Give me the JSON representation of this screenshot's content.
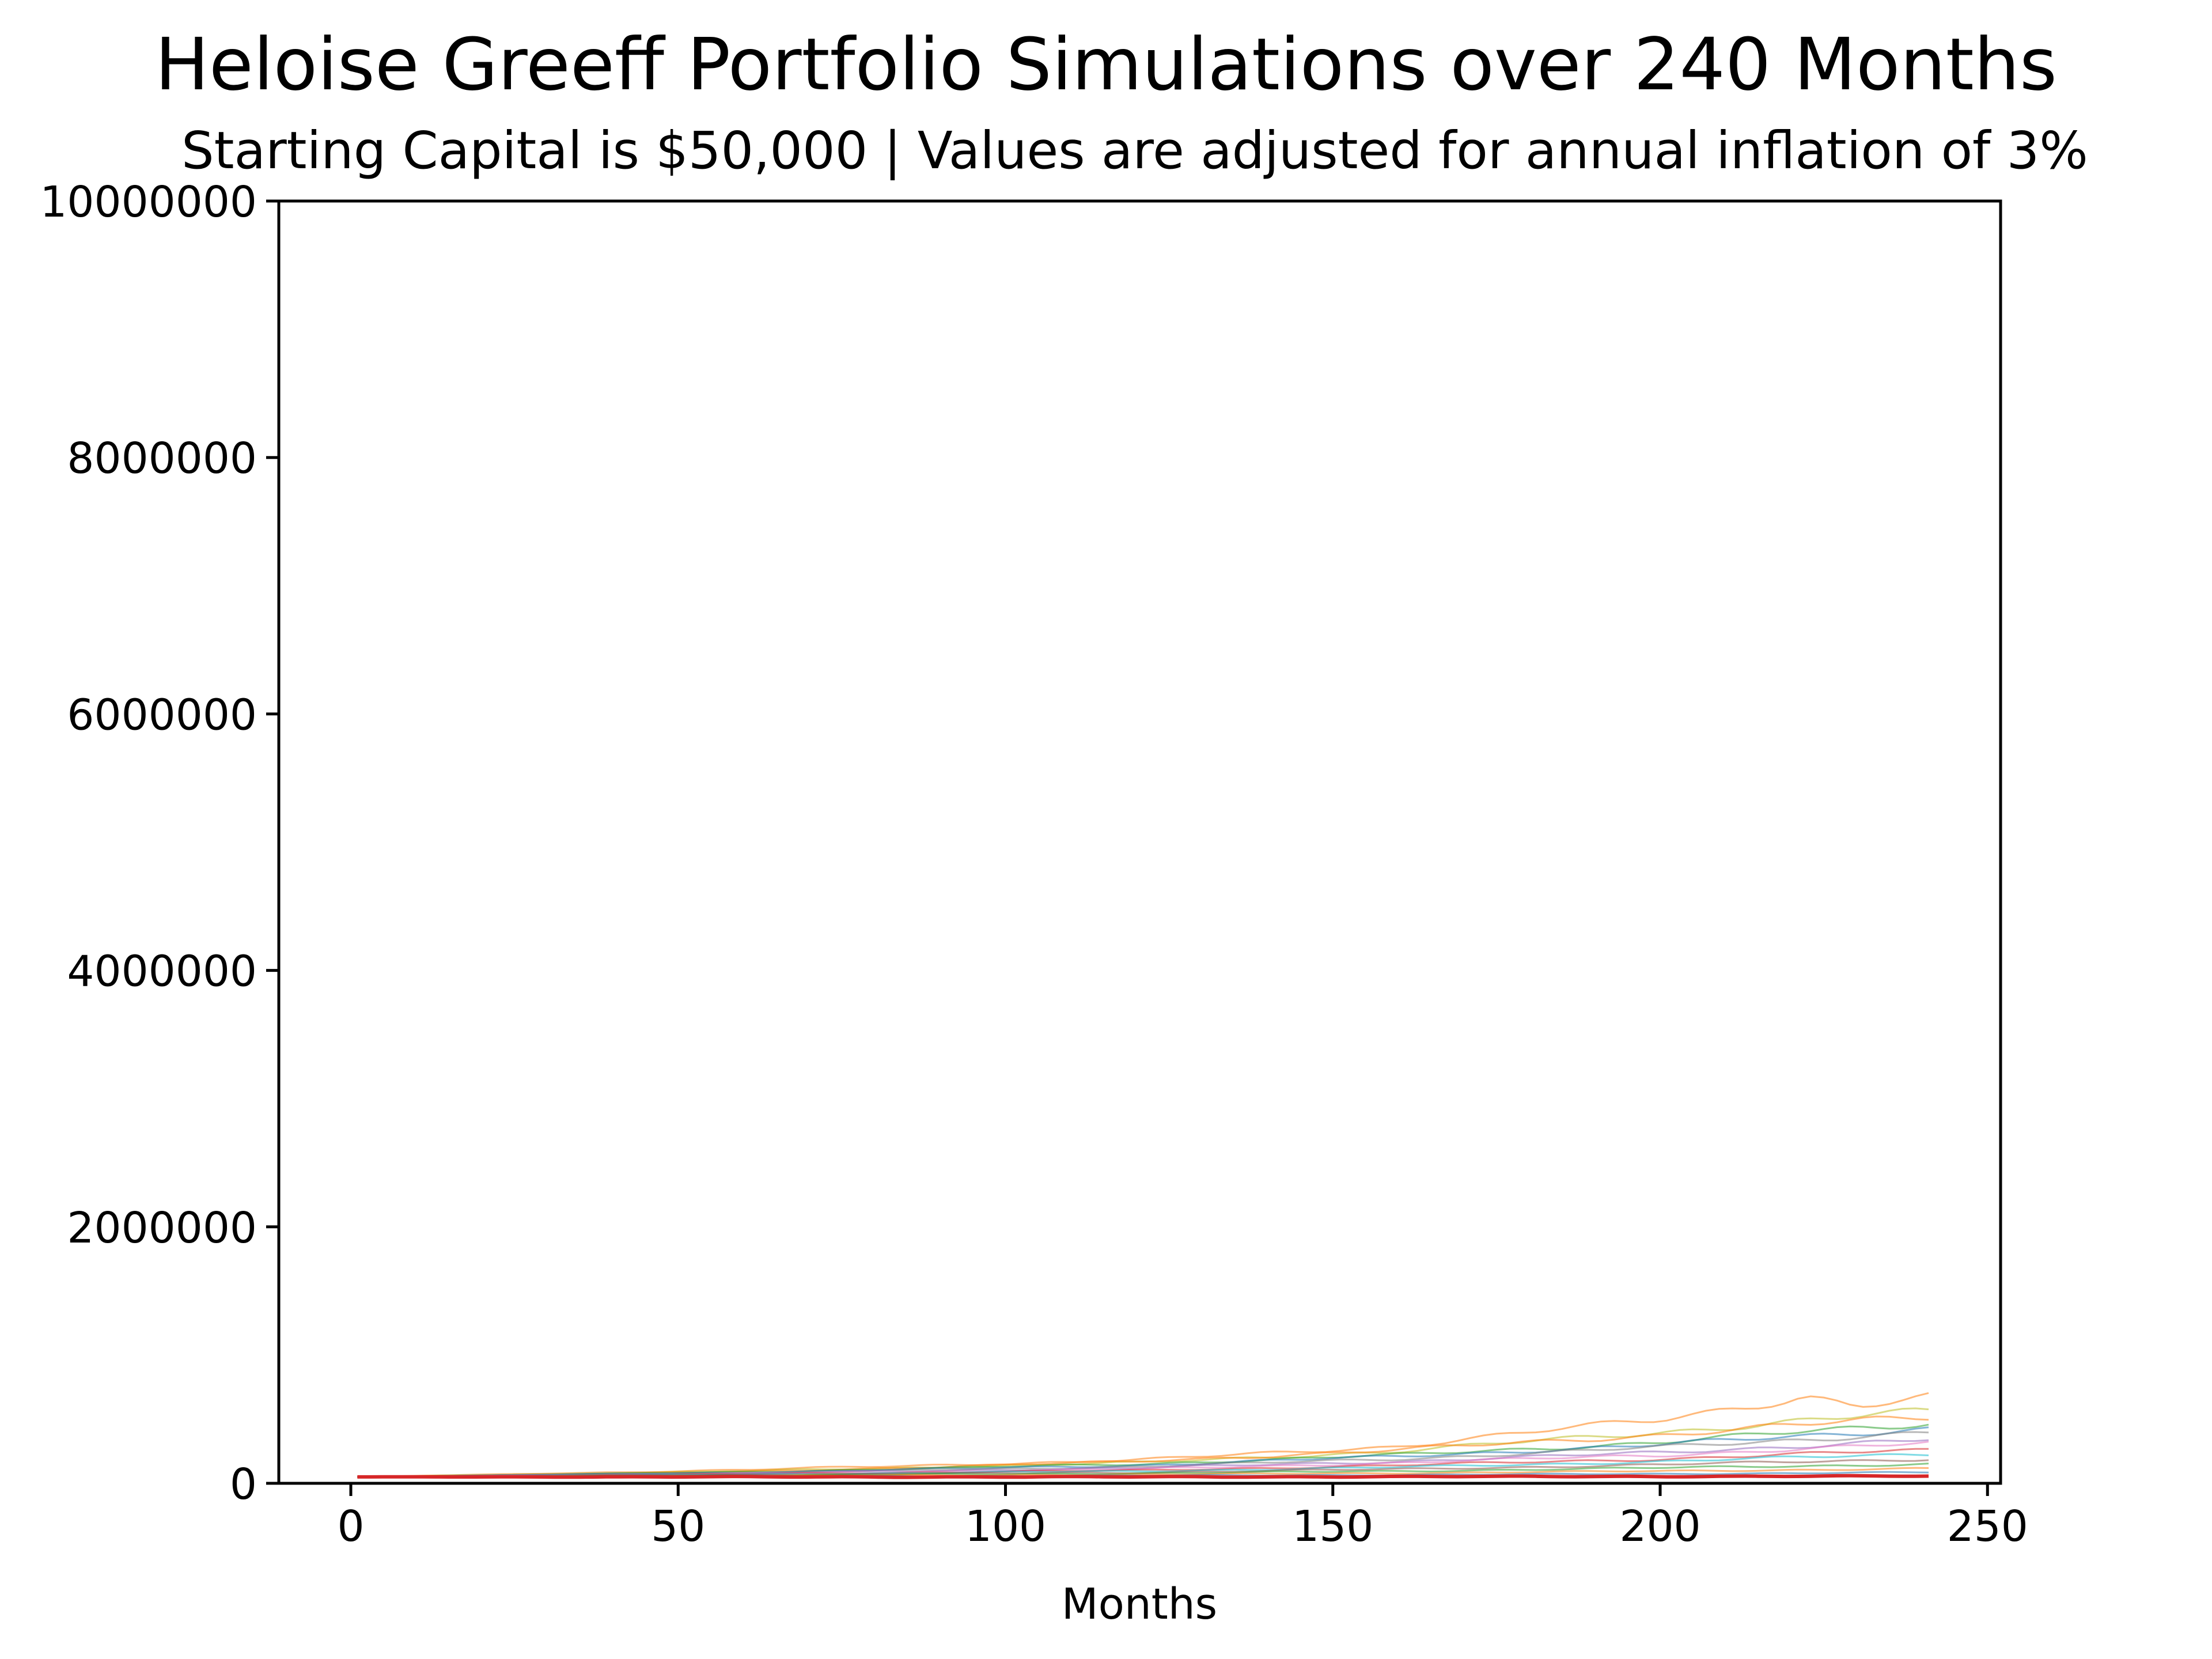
{
  "chart_data": {
    "type": "line",
    "title": "Heloise Greeff Portfolio Simulations over 240 Months",
    "subtitle": "Starting Capital is $50,000 | Values are adjusted for annual inflation of 3%",
    "xlabel": "Months",
    "ylabel": "",
    "xlim": [
      -11,
      252
    ],
    "ylim": [
      0,
      10000000
    ],
    "x_ticks": [
      0,
      50,
      100,
      150,
      200,
      250
    ],
    "y_ticks": [
      0,
      2000000,
      4000000,
      6000000,
      8000000,
      10000000
    ],
    "x_tick_labels": [
      "0",
      "50",
      "100",
      "150",
      "200",
      "250"
    ],
    "y_tick_labels": [
      "0",
      "2000000",
      "4000000",
      "6000000",
      "8000000",
      "10000000"
    ],
    "grid": false,
    "legend": "none",
    "simulation_months": 240,
    "starting_capital": 50000,
    "colors": [
      "#1f77b4",
      "#ff7f0e",
      "#2ca02c",
      "#d62728",
      "#9467bd",
      "#8c564b",
      "#e377c2",
      "#7f7f7f",
      "#bcbd22",
      "#17becf"
    ],
    "series_endpoints": [
      {
        "color": "#ff7f0e",
        "x": [
          1,
          60,
          120,
          160,
          200,
          222,
          230,
          241
        ],
        "values": [
          50000,
          105000,
          180000,
          290000,
          500000,
          680000,
          600000,
          660000
        ]
      },
      {
        "color": "#bcbd22",
        "x": [
          1,
          60,
          120,
          160,
          200,
          241
        ],
        "values": [
          50000,
          95000,
          160000,
          250000,
          400000,
          560000
        ]
      },
      {
        "color": "#ff7f0e",
        "x": [
          1,
          60,
          120,
          160,
          200,
          241
        ],
        "values": [
          50000,
          90000,
          170000,
          260000,
          380000,
          520000
        ]
      },
      {
        "color": "#2ca02c",
        "x": [
          1,
          60,
          120,
          160,
          200,
          241
        ],
        "values": [
          50000,
          88000,
          150000,
          220000,
          320000,
          470000
        ]
      },
      {
        "color": "#1f77b4",
        "x": [
          1,
          60,
          120,
          160,
          200,
          241
        ],
        "values": [
          50000,
          85000,
          140000,
          210000,
          300000,
          430000
        ]
      },
      {
        "color": "#7f7f7f",
        "x": [
          1,
          60,
          120,
          160,
          200,
          241
        ],
        "values": [
          50000,
          80000,
          130000,
          190000,
          280000,
          400000
        ]
      },
      {
        "color": "#9467bd",
        "x": [
          1,
          60,
          120,
          160,
          200,
          241
        ],
        "values": [
          50000,
          78000,
          120000,
          170000,
          240000,
          340000
        ]
      },
      {
        "color": "#e377c2",
        "x": [
          1,
          60,
          120,
          160,
          200,
          241
        ],
        "values": [
          50000,
          75000,
          110000,
          160000,
          220000,
          310000
        ]
      },
      {
        "color": "#d62728",
        "x": [
          1,
          60,
          120,
          160,
          200,
          241
        ],
        "values": [
          50000,
          72000,
          100000,
          140000,
          190000,
          260000
        ]
      },
      {
        "color": "#17becf",
        "x": [
          1,
          60,
          120,
          160,
          200,
          241
        ],
        "values": [
          50000,
          70000,
          95000,
          125000,
          170000,
          230000
        ]
      },
      {
        "color": "#8c564b",
        "x": [
          1,
          60,
          120,
          160,
          200,
          241
        ],
        "values": [
          50000,
          66000,
          85000,
          110000,
          145000,
          190000
        ]
      },
      {
        "color": "#2ca02c",
        "x": [
          1,
          60,
          120,
          160,
          200,
          241
        ],
        "values": [
          50000,
          62000,
          78000,
          95000,
          120000,
          150000
        ]
      },
      {
        "color": "#ff7f0e",
        "x": [
          1,
          60,
          120,
          160,
          200,
          241
        ],
        "values": [
          50000,
          58000,
          68000,
          80000,
          95000,
          115000
        ]
      },
      {
        "color": "#1f77b4",
        "x": [
          1,
          60,
          120,
          160,
          200,
          241
        ],
        "values": [
          50000,
          54000,
          60000,
          66000,
          74000,
          85000
        ]
      },
      {
        "color": "#d62728",
        "x": [
          1,
          60,
          120,
          160,
          200,
          241
        ],
        "values": [
          50000,
          50000,
          50000,
          52000,
          54000,
          56000
        ]
      }
    ]
  }
}
